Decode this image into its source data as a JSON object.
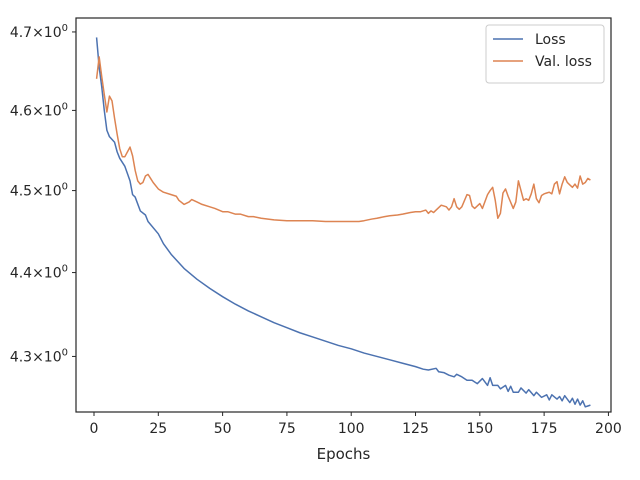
{
  "chart_data": {
    "type": "line",
    "title": "",
    "xlabel": "Epochs",
    "ylabel": "",
    "xlim": [
      -7,
      201
    ],
    "ylim": [
      4.235,
      4.718
    ],
    "yscale": "log",
    "grid": false,
    "legend_position": "top-right",
    "x_ticks": [
      0,
      25,
      50,
      75,
      100,
      125,
      150,
      175,
      200
    ],
    "x_tick_labels": [
      "0",
      "25",
      "50",
      "75",
      "100",
      "125",
      "150",
      "175",
      "200"
    ],
    "y_ticks": [
      4.3,
      4.4,
      4.5,
      4.6,
      4.7
    ],
    "y_tick_labels": [
      "4.3",
      "4.4",
      "4.5",
      "4.6",
      "4.7"
    ],
    "y_tick_base": "10",
    "y_tick_exponent": "0",
    "y_tick_times": "×",
    "series": [
      {
        "name": "Loss",
        "color": "#4c72b0",
        "points": [
          [
            1,
            4.693
          ],
          [
            2,
            4.655
          ],
          [
            3,
            4.63
          ],
          [
            4,
            4.6
          ],
          [
            5,
            4.575
          ],
          [
            6,
            4.567
          ],
          [
            8,
            4.56
          ],
          [
            9,
            4.548
          ],
          [
            10,
            4.54
          ],
          [
            12,
            4.53
          ],
          [
            14,
            4.512
          ],
          [
            15,
            4.495
          ],
          [
            16,
            4.492
          ],
          [
            18,
            4.475
          ],
          [
            20,
            4.47
          ],
          [
            21,
            4.462
          ],
          [
            25,
            4.447
          ],
          [
            27,
            4.435
          ],
          [
            30,
            4.422
          ],
          [
            35,
            4.405
          ],
          [
            40,
            4.392
          ],
          [
            45,
            4.381
          ],
          [
            50,
            4.371
          ],
          [
            55,
            4.362
          ],
          [
            60,
            4.354
          ],
          [
            65,
            4.347
          ],
          [
            70,
            4.34
          ],
          [
            75,
            4.334
          ],
          [
            80,
            4.328
          ],
          [
            85,
            4.323
          ],
          [
            90,
            4.318
          ],
          [
            95,
            4.313
          ],
          [
            100,
            4.309
          ],
          [
            105,
            4.304
          ],
          [
            110,
            4.3
          ],
          [
            115,
            4.296
          ],
          [
            120,
            4.292
          ],
          [
            125,
            4.288
          ],
          [
            128,
            4.285
          ],
          [
            130,
            4.284
          ],
          [
            133,
            4.286
          ],
          [
            134,
            4.282
          ],
          [
            136,
            4.281
          ],
          [
            138,
            4.278
          ],
          [
            140,
            4.276
          ],
          [
            141,
            4.279
          ],
          [
            143,
            4.276
          ],
          [
            145,
            4.272
          ],
          [
            147,
            4.272
          ],
          [
            149,
            4.268
          ],
          [
            151,
            4.274
          ],
          [
            153,
            4.266
          ],
          [
            154,
            4.275
          ],
          [
            155,
            4.266
          ],
          [
            157,
            4.266
          ],
          [
            158,
            4.262
          ],
          [
            160,
            4.266
          ],
          [
            161,
            4.259
          ],
          [
            162,
            4.265
          ],
          [
            163,
            4.258
          ],
          [
            165,
            4.258
          ],
          [
            166,
            4.263
          ],
          [
            168,
            4.257
          ],
          [
            169,
            4.261
          ],
          [
            171,
            4.254
          ],
          [
            172,
            4.258
          ],
          [
            174,
            4.252
          ],
          [
            176,
            4.255
          ],
          [
            177,
            4.249
          ],
          [
            178,
            4.255
          ],
          [
            180,
            4.25
          ],
          [
            181,
            4.253
          ],
          [
            182,
            4.248
          ],
          [
            183,
            4.254
          ],
          [
            185,
            4.246
          ],
          [
            186,
            4.251
          ],
          [
            187,
            4.244
          ],
          [
            188,
            4.25
          ],
          [
            189,
            4.243
          ],
          [
            190,
            4.248
          ],
          [
            191,
            4.241
          ],
          [
            192,
            4.242
          ],
          [
            193,
            4.243
          ]
        ]
      },
      {
        "name": "Val. loss",
        "color": "#dd8452",
        "points": [
          [
            1,
            4.64
          ],
          [
            2,
            4.668
          ],
          [
            3,
            4.643
          ],
          [
            4,
            4.62
          ],
          [
            5,
            4.598
          ],
          [
            6,
            4.618
          ],
          [
            7,
            4.612
          ],
          [
            8,
            4.59
          ],
          [
            9,
            4.57
          ],
          [
            10,
            4.552
          ],
          [
            11,
            4.542
          ],
          [
            12,
            4.542
          ],
          [
            13,
            4.548
          ],
          [
            14,
            4.554
          ],
          [
            15,
            4.543
          ],
          [
            16,
            4.525
          ],
          [
            17,
            4.512
          ],
          [
            18,
            4.508
          ],
          [
            19,
            4.51
          ],
          [
            20,
            4.518
          ],
          [
            21,
            4.52
          ],
          [
            22,
            4.515
          ],
          [
            23,
            4.51
          ],
          [
            25,
            4.502
          ],
          [
            27,
            4.498
          ],
          [
            30,
            4.495
          ],
          [
            32,
            4.493
          ],
          [
            33,
            4.488
          ],
          [
            35,
            4.483
          ],
          [
            37,
            4.486
          ],
          [
            38,
            4.489
          ],
          [
            40,
            4.486
          ],
          [
            42,
            4.483
          ],
          [
            45,
            4.48
          ],
          [
            47,
            4.478
          ],
          [
            50,
            4.474
          ],
          [
            52,
            4.474
          ],
          [
            55,
            4.471
          ],
          [
            57,
            4.471
          ],
          [
            60,
            4.468
          ],
          [
            62,
            4.468
          ],
          [
            65,
            4.466
          ],
          [
            70,
            4.464
          ],
          [
            75,
            4.463
          ],
          [
            80,
            4.463
          ],
          [
            85,
            4.463
          ],
          [
            90,
            4.462
          ],
          [
            95,
            4.462
          ],
          [
            100,
            4.462
          ],
          [
            103,
            4.462
          ],
          [
            105,
            4.463
          ],
          [
            108,
            4.465
          ],
          [
            110,
            4.466
          ],
          [
            113,
            4.468
          ],
          [
            115,
            4.469
          ],
          [
            118,
            4.47
          ],
          [
            120,
            4.471
          ],
          [
            123,
            4.473
          ],
          [
            125,
            4.474
          ],
          [
            127,
            4.474
          ],
          [
            129,
            4.476
          ],
          [
            130,
            4.472
          ],
          [
            131,
            4.475
          ],
          [
            132,
            4.473
          ],
          [
            133,
            4.476
          ],
          [
            135,
            4.482
          ],
          [
            137,
            4.48
          ],
          [
            138,
            4.476
          ],
          [
            139,
            4.48
          ],
          [
            140,
            4.49
          ],
          [
            141,
            4.48
          ],
          [
            142,
            4.477
          ],
          [
            143,
            4.48
          ],
          [
            145,
            4.495
          ],
          [
            146,
            4.494
          ],
          [
            147,
            4.481
          ],
          [
            148,
            4.478
          ],
          [
            150,
            4.484
          ],
          [
            151,
            4.478
          ],
          [
            153,
            4.495
          ],
          [
            154,
            4.5
          ],
          [
            155,
            4.504
          ],
          [
            156,
            4.488
          ],
          [
            157,
            4.466
          ],
          [
            158,
            4.472
          ],
          [
            159,
            4.497
          ],
          [
            160,
            4.502
          ],
          [
            161,
            4.493
          ],
          [
            163,
            4.478
          ],
          [
            164,
            4.486
          ],
          [
            165,
            4.512
          ],
          [
            166,
            4.5
          ],
          [
            167,
            4.488
          ],
          [
            168,
            4.49
          ],
          [
            169,
            4.488
          ],
          [
            170,
            4.496
          ],
          [
            171,
            4.508
          ],
          [
            172,
            4.49
          ],
          [
            173,
            4.485
          ],
          [
            174,
            4.494
          ],
          [
            175,
            4.496
          ],
          [
            176,
            4.497
          ],
          [
            177,
            4.498
          ],
          [
            178,
            4.496
          ],
          [
            179,
            4.508
          ],
          [
            180,
            4.511
          ],
          [
            181,
            4.496
          ],
          [
            182,
            4.508
          ],
          [
            183,
            4.517
          ],
          [
            184,
            4.51
          ],
          [
            185,
            4.507
          ],
          [
            186,
            4.504
          ],
          [
            187,
            4.508
          ],
          [
            188,
            4.503
          ],
          [
            189,
            4.518
          ],
          [
            190,
            4.508
          ],
          [
            191,
            4.51
          ],
          [
            192,
            4.515
          ],
          [
            193,
            4.513
          ]
        ]
      }
    ]
  }
}
